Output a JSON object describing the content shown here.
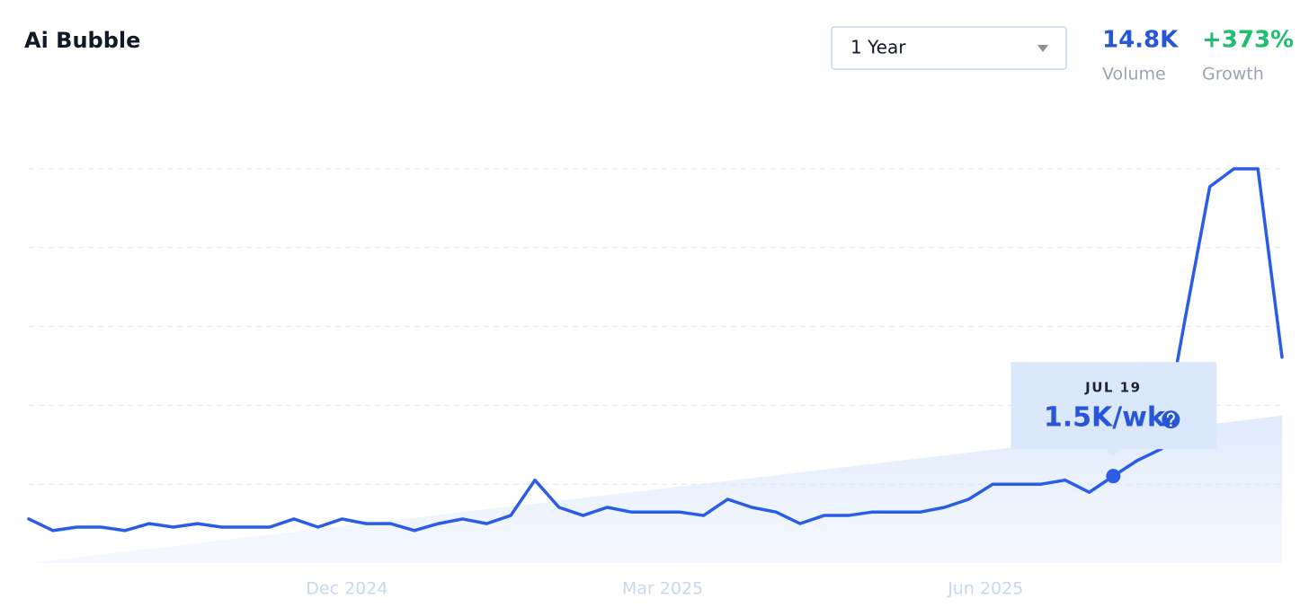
{
  "header": {
    "title": "Ai Bubble",
    "range": "1 Year",
    "stats": [
      {
        "value": "14.8K",
        "label": "Volume"
      },
      {
        "value": "+373%",
        "label": "Growth"
      }
    ]
  },
  "chart_data": {
    "type": "line",
    "categories": [
      null,
      null,
      null,
      null,
      null,
      null,
      null,
      null,
      null,
      null,
      null,
      null,
      null,
      null,
      null,
      null,
      null,
      null,
      null,
      null,
      null,
      null,
      null,
      null,
      null,
      null,
      null,
      null,
      null,
      null,
      null,
      null,
      null,
      null,
      null,
      null,
      null,
      null,
      null,
      null,
      null,
      null,
      null,
      null,
      null,
      "JUL 19",
      null,
      null,
      null,
      null,
      null,
      null,
      null
    ],
    "series": [
      {
        "color": "#2b5ce6",
        "values": [
          760,
          560,
          620,
          620,
          560,
          680,
          620,
          680,
          620,
          620,
          620,
          760,
          620,
          760,
          680,
          680,
          560,
          680,
          760,
          680,
          820,
          1430,
          960,
          820,
          960,
          880,
          880,
          880,
          820,
          1100,
          960,
          880,
          680,
          820,
          820,
          880,
          880,
          880,
          960,
          1100,
          1360,
          1360,
          1360,
          1430,
          1220,
          1500,
          1770,
          1970,
          4260,
          6490,
          6800,
          6800,
          3550
        ],
        "value_labels": [
          null,
          null,
          null,
          null,
          null,
          null,
          null,
          null,
          null,
          null,
          null,
          null,
          null,
          null,
          null,
          null,
          null,
          null,
          null,
          null,
          null,
          null,
          null,
          null,
          null,
          null,
          null,
          null,
          null,
          null,
          null,
          null,
          null,
          null,
          null,
          null,
          null,
          null,
          null,
          null,
          null,
          null,
          null,
          null,
          null,
          "1.5K/wk",
          null,
          null,
          null,
          null,
          null,
          null,
          null
        ]
      }
    ],
    "trend": [
      0,
      2540
    ],
    "xticks": [
      {
        "value": 13.2,
        "label": "Dec 2024"
      },
      {
        "value": 26.3,
        "label": "Mar 2025"
      },
      {
        "value": 39.7,
        "label": "Jun 2025"
      }
    ],
    "ylim": [
      0,
      6800
    ],
    "yticks": [
      1360,
      2720,
      4080,
      5440,
      6800
    ],
    "grid": true
  }
}
